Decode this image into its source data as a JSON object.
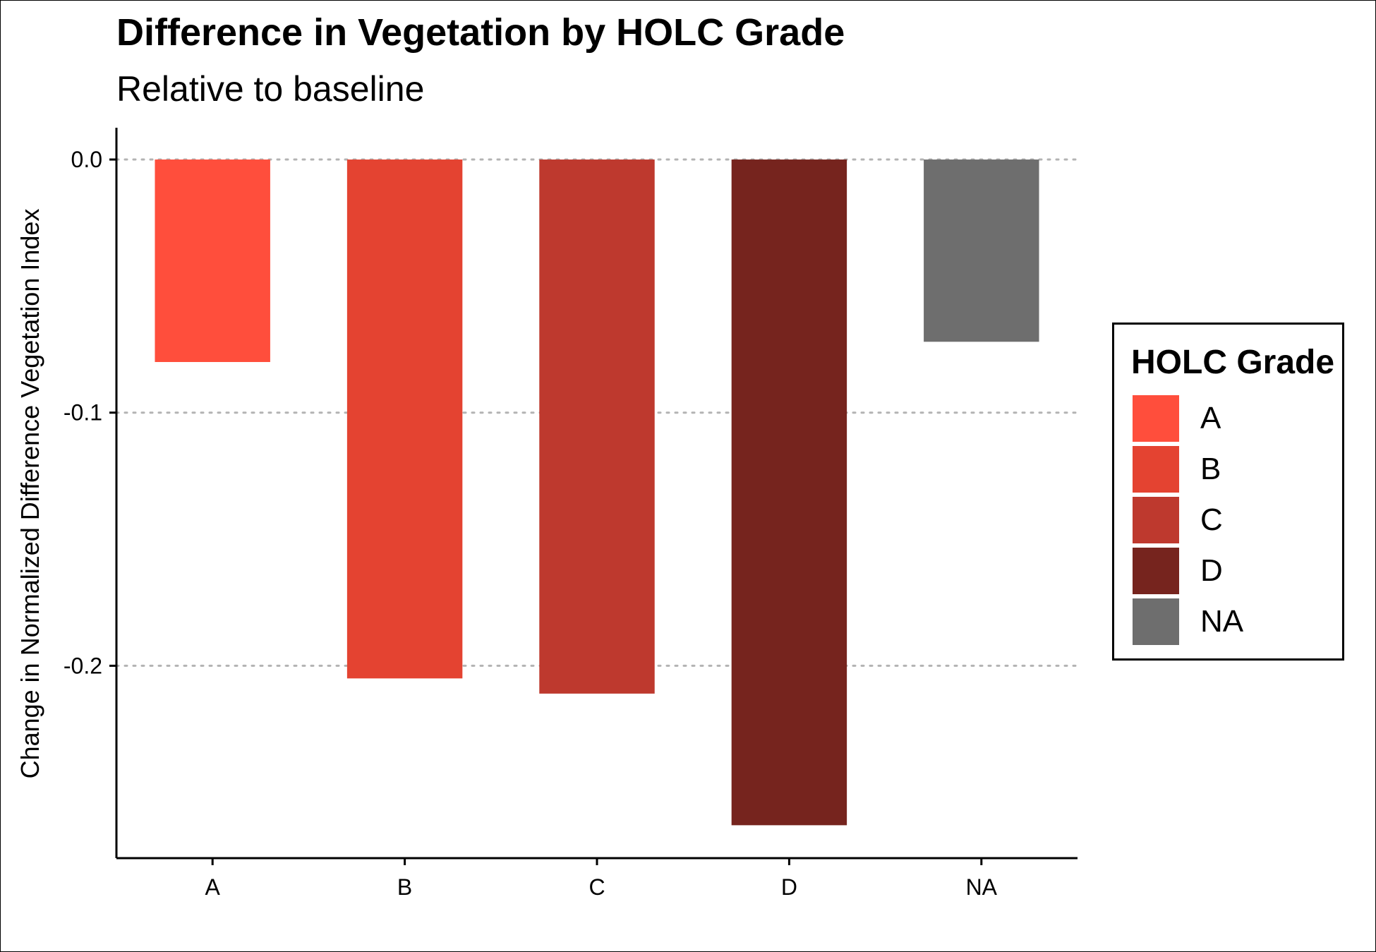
{
  "chart_data": {
    "type": "bar",
    "title": "Difference in Vegetation by HOLC Grade",
    "subtitle": "Relative to baseline",
    "xlabel": "",
    "ylabel": "Change in Normalized Difference Vegetation Index",
    "categories": [
      "A",
      "B",
      "C",
      "D",
      "NA"
    ],
    "values": [
      -0.08,
      -0.205,
      -0.211,
      -0.263,
      -0.072
    ],
    "colors": [
      "#FF4E3C",
      "#E44331",
      "#BE392E",
      "#76241E",
      "#6E6E6E"
    ],
    "ylim": [
      -0.276,
      0.012
    ],
    "yticks": [
      0.0,
      -0.1,
      -0.2
    ],
    "ytick_labels": [
      "0.0",
      "-0.1",
      "-0.2"
    ],
    "grid": "horizontal dotted",
    "legend": {
      "title": "HOLC Grade",
      "placement": "right",
      "entries": [
        "A",
        "B",
        "C",
        "D",
        "NA"
      ]
    }
  }
}
